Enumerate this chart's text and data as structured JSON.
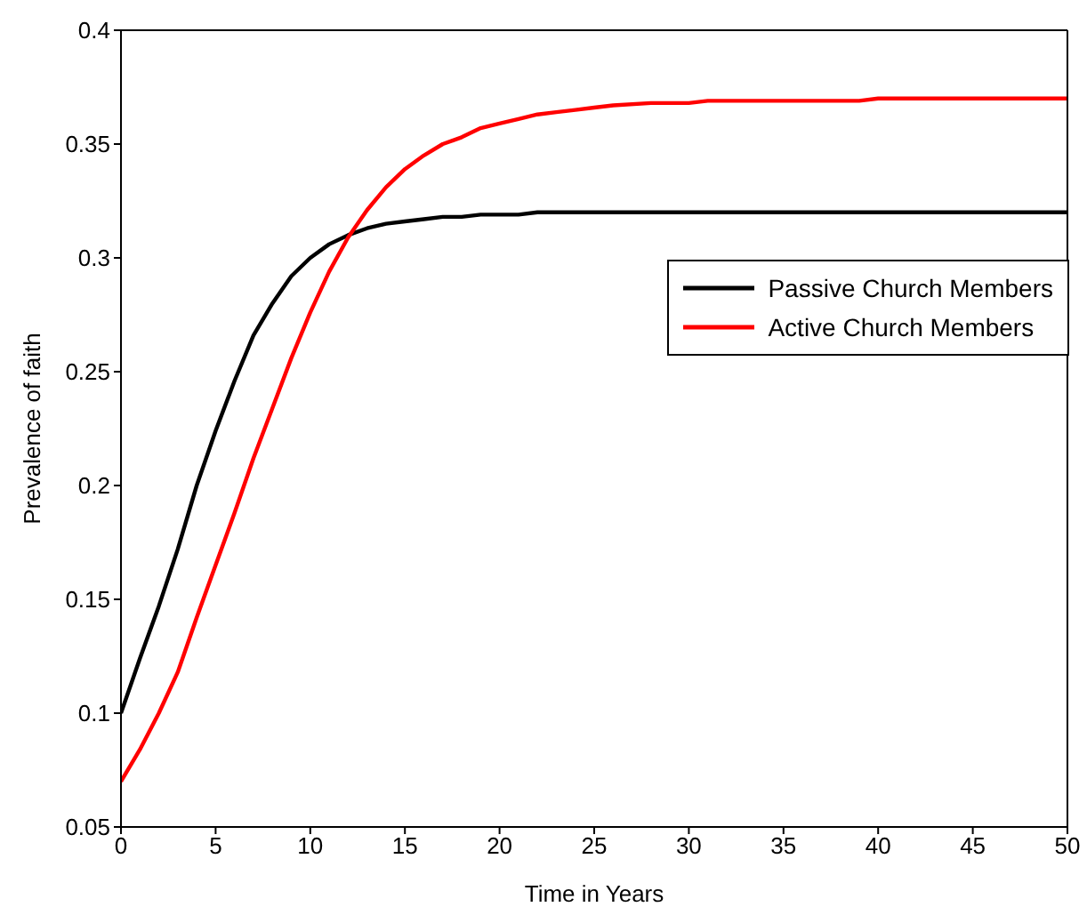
{
  "chart_data": {
    "type": "line",
    "xlabel": "Time in Years",
    "ylabel": "Prevalence of faith",
    "x": [
      0,
      1,
      2,
      3,
      4,
      5,
      6,
      7,
      8,
      9,
      10,
      11,
      12,
      13,
      14,
      15,
      16,
      17,
      18,
      19,
      20,
      21,
      22,
      23,
      24,
      25,
      26,
      28,
      30,
      31,
      35,
      39,
      40,
      45,
      50
    ],
    "series": [
      {
        "name": "Passive Church Members",
        "color": "#000000",
        "values": [
          0.1,
          0.124,
          0.147,
          0.172,
          0.2,
          0.224,
          0.246,
          0.266,
          0.28,
          0.292,
          0.3,
          0.306,
          0.31,
          0.313,
          0.315,
          0.316,
          0.317,
          0.318,
          0.318,
          0.319,
          0.319,
          0.319,
          0.32,
          0.32,
          0.32,
          0.32,
          0.32,
          0.32,
          0.32,
          0.32,
          0.32,
          0.32,
          0.32,
          0.32,
          0.32
        ]
      },
      {
        "name": "Active Church Members",
        "color": "#ff0000",
        "values": [
          0.07,
          0.084,
          0.1,
          0.118,
          0.142,
          0.165,
          0.188,
          0.212,
          0.234,
          0.256,
          0.276,
          0.294,
          0.309,
          0.321,
          0.331,
          0.339,
          0.345,
          0.35,
          0.353,
          0.357,
          0.359,
          0.361,
          0.363,
          0.364,
          0.365,
          0.366,
          0.367,
          0.368,
          0.368,
          0.369,
          0.369,
          0.369,
          0.37,
          0.37,
          0.37
        ]
      }
    ],
    "xlim": [
      0,
      50
    ],
    "xticks": [
      0,
      5,
      10,
      15,
      20,
      25,
      30,
      35,
      40,
      45,
      50
    ],
    "ylim": [
      0.05,
      0.4
    ],
    "yticks": [
      0.05,
      0.1,
      0.15,
      0.2,
      0.25,
      0.3,
      0.35,
      0.4
    ],
    "grid": false,
    "legend": "right",
    "marker": "none",
    "line_style": "solid"
  }
}
